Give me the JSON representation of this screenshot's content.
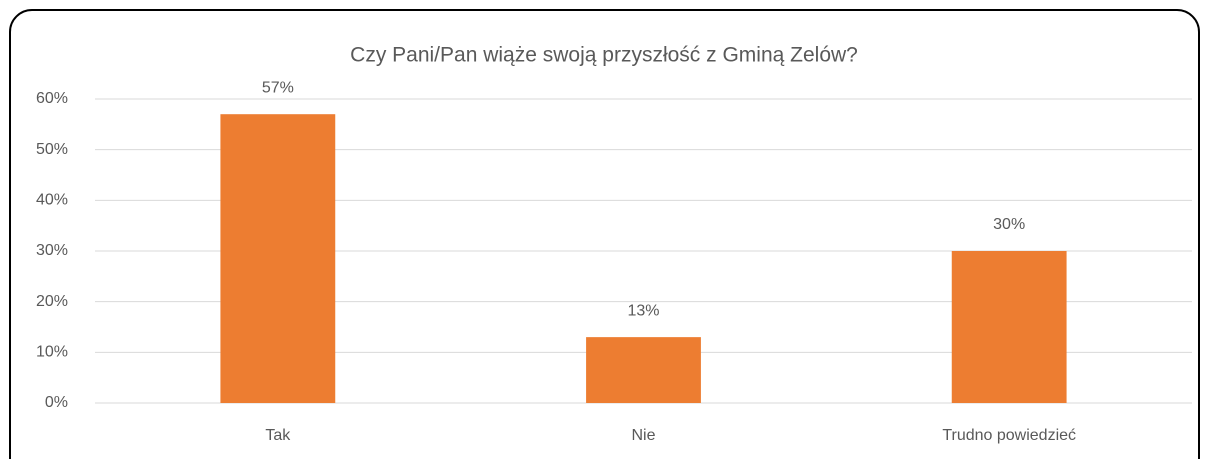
{
  "chart_data": {
    "type": "bar",
    "title": "Czy Pani/Pan wiąże swoją przyszłość z Gminą Zelów?",
    "categories": [
      "Tak",
      "Nie",
      "Trudno powiedzieć"
    ],
    "values": [
      57,
      13,
      30
    ],
    "value_labels": [
      "57%",
      "13%",
      "30%"
    ],
    "color": "#ed7d31",
    "ylim": [
      0,
      60
    ],
    "yticks": [
      {
        "value": 0,
        "label": "0%"
      },
      {
        "value": 10,
        "label": "10%"
      },
      {
        "value": 20,
        "label": "20%"
      },
      {
        "value": 30,
        "label": "30%"
      },
      {
        "value": 40,
        "label": "40%"
      },
      {
        "value": 50,
        "label": "50%"
      },
      {
        "value": 60,
        "label": "60%"
      }
    ],
    "grid": true
  }
}
